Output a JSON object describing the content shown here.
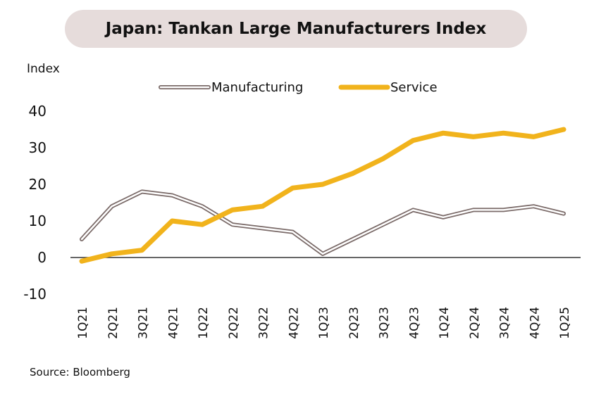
{
  "chart_data": {
    "type": "line",
    "title": "Japan: Tankan Large Manufacturers Index",
    "ylabel": "Index",
    "xlabel": "",
    "source": "Source: Bloomberg",
    "categories": [
      "1Q21",
      "2Q21",
      "3Q21",
      "4Q21",
      "1Q22",
      "2Q22",
      "3Q22",
      "4Q22",
      "1Q23",
      "2Q23",
      "3Q23",
      "4Q23",
      "1Q24",
      "2Q24",
      "3Q24",
      "4Q24",
      "1Q25"
    ],
    "yticks": [
      40,
      30,
      20,
      10,
      0,
      -10
    ],
    "ylim": [
      -10,
      40
    ],
    "legend_position": "top",
    "series": [
      {
        "name": "Manufacturing",
        "color": "#7a6a68",
        "style": "outlined",
        "values": [
          5,
          14,
          18,
          17,
          14,
          9,
          8,
          7,
          1,
          5,
          9,
          13,
          11,
          13,
          13,
          14,
          12
        ]
      },
      {
        "name": "Service",
        "color": "#f1b31c",
        "style": "solid",
        "values": [
          -1,
          1,
          2,
          10,
          9,
          13,
          14,
          19,
          20,
          23,
          27,
          32,
          34,
          33,
          34,
          33,
          35
        ]
      }
    ]
  }
}
